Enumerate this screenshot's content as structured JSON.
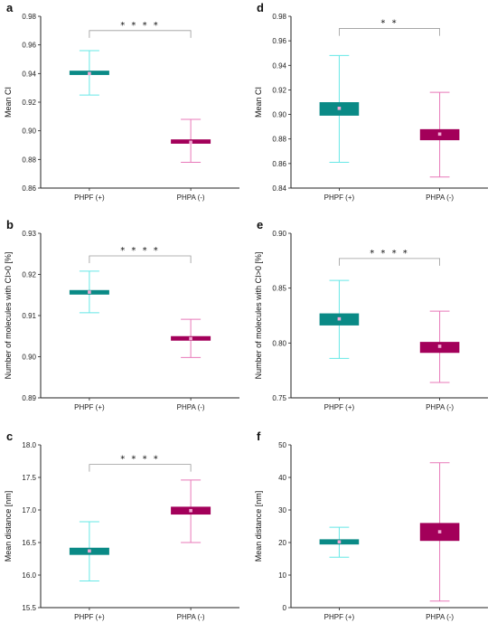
{
  "colors": {
    "phpf_box": "#0a8a86",
    "phpf_whisker": "#66e8e6",
    "phpa_box": "#a3005a",
    "phpa_whisker": "#e879b9",
    "mean_marker": "#f3a9d4",
    "bracket": "#9a9a9a",
    "axis": "#222222"
  },
  "chart_data": [
    {
      "type": "box",
      "panel": "a",
      "ylabel": "Mean CI",
      "ylim": [
        0.86,
        0.98
      ],
      "yticks": [
        "0.86",
        "0.88",
        "0.90",
        "0.92",
        "0.94",
        "0.96",
        "0.98"
      ],
      "categories": [
        "PHPF (+)",
        "PHPA (-)"
      ],
      "boxes": [
        {
          "whisker_low": 0.925,
          "q1": 0.939,
          "q3": 0.942,
          "whisker_high": 0.956,
          "mean": 0.94
        },
        {
          "whisker_low": 0.878,
          "q1": 0.891,
          "q3": 0.894,
          "whisker_high": 0.908,
          "mean": 0.892
        }
      ],
      "significance": "* * * *",
      "bracket_y": 0.97
    },
    {
      "type": "box",
      "panel": "d",
      "ylabel": "Mean CI",
      "ylim": [
        0.84,
        0.98
      ],
      "yticks": [
        "0.84",
        "0.86",
        "0.88",
        "0.90",
        "0.92",
        "0.94",
        "0.96",
        "0.98"
      ],
      "categories": [
        "PHPF (+)",
        "PHPA (-)"
      ],
      "boxes": [
        {
          "whisker_low": 0.861,
          "q1": 0.899,
          "q3": 0.91,
          "whisker_high": 0.948,
          "mean": 0.905
        },
        {
          "whisker_low": 0.849,
          "q1": 0.879,
          "q3": 0.888,
          "whisker_high": 0.918,
          "mean": 0.884
        }
      ],
      "significance": "* *",
      "bracket_y": 0.97
    },
    {
      "type": "box",
      "panel": "b",
      "ylabel": "Number of molecules with CI>0 [%]",
      "ylim": [
        0.89,
        0.93
      ],
      "yticks": [
        "0.89",
        "0.90",
        "0.91",
        "0.92",
        "0.93"
      ],
      "categories": [
        "PHPF (+)",
        "PHPA (-)"
      ],
      "boxes": [
        {
          "whisker_low": 0.9107,
          "q1": 0.9151,
          "q3": 0.9162,
          "whisker_high": 0.9208,
          "mean": 0.9157
        },
        {
          "whisker_low": 0.8998,
          "q1": 0.9039,
          "q3": 0.905,
          "whisker_high": 0.9091,
          "mean": 0.9044
        }
      ],
      "significance": "* * * *",
      "bracket_y": 0.9245
    },
    {
      "type": "box",
      "panel": "e",
      "ylabel": "Number of molecules with CI>0 [%]",
      "ylim": [
        0.75,
        0.9
      ],
      "yticks": [
        "0.75",
        "0.80",
        "0.85",
        "0.90"
      ],
      "categories": [
        "PHPF (+)",
        "PHPA (-)"
      ],
      "boxes": [
        {
          "whisker_low": 0.786,
          "q1": 0.816,
          "q3": 0.827,
          "whisker_high": 0.857,
          "mean": 0.822
        },
        {
          "whisker_low": 0.764,
          "q1": 0.791,
          "q3": 0.801,
          "whisker_high": 0.829,
          "mean": 0.797
        }
      ],
      "significance": "* * * *",
      "bracket_y": 0.877
    },
    {
      "type": "box",
      "panel": "c",
      "ylabel": "Mean distance [nm]",
      "ylim": [
        15.5,
        18.0
      ],
      "yticks": [
        "15.5",
        "16.0",
        "16.5",
        "17.0",
        "17.5",
        "18.0"
      ],
      "categories": [
        "PHPF (+)",
        "PHPA (-)"
      ],
      "boxes": [
        {
          "whisker_low": 15.91,
          "q1": 16.31,
          "q3": 16.42,
          "whisker_high": 16.82,
          "mean": 16.37
        },
        {
          "whisker_low": 16.5,
          "q1": 16.93,
          "q3": 17.05,
          "whisker_high": 17.46,
          "mean": 16.99
        }
      ],
      "significance": "* * * *",
      "bracket_y": 17.7
    },
    {
      "type": "box",
      "panel": "f",
      "ylabel": "Mean distance [nm]",
      "ylim": [
        0,
        50
      ],
      "yticks": [
        "0",
        "10",
        "20",
        "30",
        "40",
        "50"
      ],
      "categories": [
        "PHPF (+)",
        "PHPA (-)"
      ],
      "boxes": [
        {
          "whisker_low": 15.5,
          "q1": 19.4,
          "q3": 21.0,
          "whisker_high": 24.7,
          "mean": 20.2
        },
        {
          "whisker_low": 2.0,
          "q1": 20.5,
          "q3": 26.0,
          "whisker_high": 44.5,
          "mean": 23.3
        }
      ],
      "significance": "",
      "bracket_y": null
    }
  ]
}
